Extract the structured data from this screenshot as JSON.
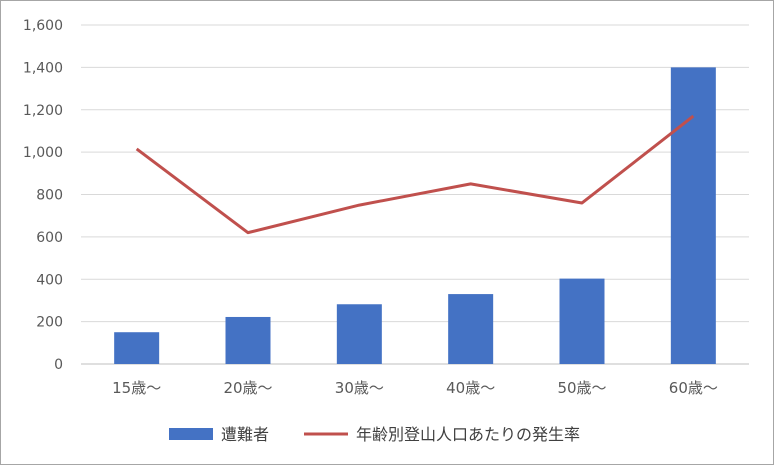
{
  "chart_data": {
    "type": "bar",
    "categories": [
      "15歳～",
      "20歳～",
      "30歳～",
      "40歳～",
      "50歳～",
      "60歳～"
    ],
    "series": [
      {
        "name": "遭難者",
        "type": "bar",
        "color": "#4472c4",
        "values": [
          150,
          222,
          282,
          330,
          403,
          1400
        ]
      },
      {
        "name": "年齢別登山人口あたりの発生率",
        "type": "line",
        "color": "#c0504d",
        "values": [
          1015,
          620,
          750,
          850,
          760,
          1170
        ]
      }
    ],
    "ylim": [
      0,
      1600
    ],
    "yticks": [
      0,
      200,
      400,
      600,
      800,
      1000,
      1200,
      1400,
      1600
    ],
    "ytick_labels": [
      "0",
      "200",
      "400",
      "600",
      "800",
      "1,000",
      "1,200",
      "1,400",
      "1,600"
    ],
    "grid": true,
    "legend_position": "bottom"
  }
}
